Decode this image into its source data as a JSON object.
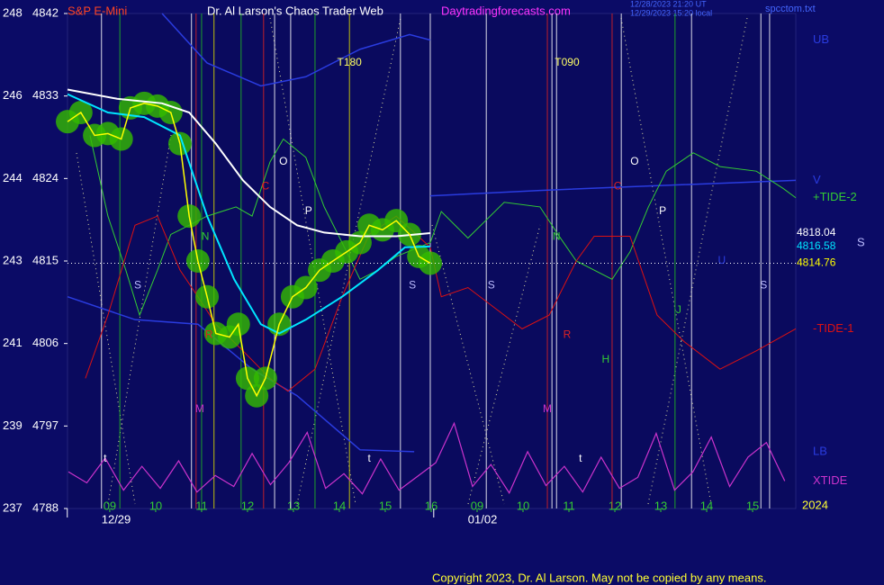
{
  "chart_data": {
    "type": "line",
    "symbol": "S&P E-Mini",
    "title": "Dr. Al Larson's Chaos Trader Web",
    "site": "Daytradingforecasts.com",
    "time_ut": "12/28/2023 21:20 UT",
    "time_local": "12/29/2023 15:20 local",
    "file": "spcctom.txt",
    "copyright": "Copyright 2023, Dr. Al Larson. May not be copied by any means.",
    "year_label": "2024",
    "side_label": "S",
    "xlim": [
      8.08,
      23.94
    ],
    "ylim": [
      4788,
      4842
    ],
    "yticks": [
      4842,
      4833,
      4824,
      4815,
      4806,
      4797,
      4788
    ],
    "y2lim": [
      237,
      248
    ],
    "y2ticks": [
      248,
      {
        "value": 246.17,
        "label": "246"
      },
      {
        "value": 244.33,
        "label": "244"
      },
      {
        "value": 242.5,
        "label": "243"
      },
      {
        "value": 240.67,
        "label": "241"
      },
      {
        "value": 238.83,
        "label": "239"
      },
      237
    ],
    "xticks": [
      {
        "value": 9,
        "label": "09"
      },
      10,
      11,
      12,
      13,
      14,
      15,
      16,
      {
        "value": 17,
        "label": "09"
      },
      {
        "value": 18,
        "label": "10"
      },
      {
        "value": 19,
        "label": "11"
      },
      {
        "value": 20,
        "label": "12"
      },
      {
        "value": 21,
        "label": "13"
      },
      {
        "value": 22,
        "label": "14"
      },
      {
        "value": 23,
        "label": "15"
      }
    ],
    "date_ticks": [
      {
        "value": 8.82,
        "label": "12/29"
      },
      {
        "value": 16.8,
        "label": "01/02"
      }
    ],
    "vertical_lines": [
      {
        "x": 8.82,
        "color": "#ffffff"
      },
      {
        "x": 9.22,
        "color": "#22bb22"
      },
      {
        "x": 10.78,
        "color": "#ffffff"
      },
      {
        "x": 10.88,
        "color": "#dd2222"
      },
      {
        "x": 11.0,
        "color": "#22bb22"
      },
      {
        "x": 11.27,
        "color": "#dddd00"
      },
      {
        "x": 11.86,
        "color": "#22bb22"
      },
      {
        "x": 12.35,
        "color": "#dd2222"
      },
      {
        "x": 12.59,
        "color": "#ffffff"
      },
      {
        "x": 12.94,
        "color": "#ffffff"
      },
      {
        "x": 13.47,
        "color": "#22bb22"
      },
      {
        "x": 14.22,
        "color": "#dddd00"
      },
      {
        "x": 15.33,
        "color": "#ffffff"
      },
      {
        "x": 15.98,
        "color": "#ffffff"
      },
      {
        "x": 17.2,
        "color": "#ffffff"
      },
      {
        "x": 18.53,
        "color": "#dd2222"
      },
      {
        "x": 18.63,
        "color": "#ffffff"
      },
      {
        "x": 18.73,
        "color": "#ffffff"
      },
      {
        "x": 19.94,
        "color": "#dd2222"
      },
      {
        "x": 20.14,
        "color": "#ffffff"
      },
      {
        "x": 21.31,
        "color": "#22bb22"
      },
      {
        "x": 21.67,
        "color": "#ffffff"
      },
      {
        "x": 23.18,
        "color": "#ffffff"
      },
      {
        "x": 23.37,
        "color": "#ffffff"
      }
    ],
    "series": [
      {
        "color": "#ffff00",
        "glow": "#33bb00",
        "x": [
          8.08,
          8.37,
          8.67,
          8.96,
          9.25,
          9.45,
          9.75,
          10.04,
          10.33,
          10.53,
          10.73,
          10.92,
          11.12,
          11.31,
          11.61,
          11.8,
          12.0,
          12.2,
          12.39,
          12.69,
          12.98,
          13.27,
          13.57,
          13.86,
          14.16,
          14.45,
          14.65,
          14.94,
          15.24,
          15.53,
          15.73,
          15.98
        ],
        "values": [
          4830.2,
          4831.2,
          4828.7,
          4828.9,
          4828.3,
          4831.7,
          4832.2,
          4831.9,
          4831.2,
          4827.8,
          4819.9,
          4815.0,
          4811.1,
          4807.1,
          4806.7,
          4808.1,
          4802.2,
          4800.3,
          4802.2,
          4808.1,
          4811.1,
          4812.1,
          4814.0,
          4815.0,
          4816.0,
          4817.0,
          4818.9,
          4818.4,
          4819.4,
          4817.9,
          4815.5,
          4814.76
        ]
      },
      {
        "color": "#00e5ff",
        "x": [
          8.08,
          8.96,
          9.75,
          10.53,
          11.12,
          11.71,
          12.29,
          12.69,
          13.27,
          14.06,
          14.84,
          15.43,
          15.98
        ],
        "values": [
          4833.2,
          4831.2,
          4830.7,
          4828.7,
          4819.9,
          4813.0,
          4808.1,
          4807.1,
          4808.6,
          4811.1,
          4814.0,
          4816.5,
          4816.58
        ]
      },
      {
        "color": "#ffffff",
        "x": [
          8.08,
          9.16,
          10.14,
          10.73,
          11.31,
          11.9,
          12.49,
          13.08,
          13.67,
          14.45,
          15.24,
          15.98
        ],
        "values": [
          4833.7,
          4832.7,
          4832.2,
          4831.2,
          4827.8,
          4823.8,
          4820.9,
          4818.9,
          4818.1,
          4817.7,
          4817.7,
          4818.04
        ]
      },
      {
        "name": "+TIDE-2",
        "color": "#33cc33",
        "x": [
          8.57,
          8.96,
          9.35,
          9.65,
          10.04,
          10.33,
          10.73,
          11.12,
          11.75,
          12.1,
          12.49,
          12.78,
          13.27,
          13.67,
          14.06,
          14.45,
          14.84,
          15.24,
          15.98,
          16.22,
          16.8,
          17.59,
          18.37,
          18.76,
          19.16,
          19.94,
          20.33,
          20.73,
          21.12,
          21.71,
          22.29,
          23.08,
          23.67,
          23.94
        ],
        "values": [
          4828.7,
          4819.9,
          4814.0,
          4809.1,
          4814.0,
          4817.9,
          4818.9,
          4819.9,
          4820.9,
          4819.9,
          4825.8,
          4828.3,
          4826.3,
          4820.9,
          4817.0,
          4813.0,
          4814.0,
          4815.5,
          4817.0,
          4820.4,
          4817.5,
          4821.4,
          4820.9,
          4817.9,
          4815.0,
          4813.0,
          4816.0,
          4820.9,
          4824.8,
          4826.8,
          4825.3,
          4824.8,
          4822.9,
          4821.9
        ]
      },
      {
        "name": "-TIDE-1",
        "color": "#dd1111",
        "x": [
          8.47,
          8.96,
          9.55,
          10.04,
          10.53,
          10.92,
          11.31,
          11.9,
          12.49,
          12.88,
          13.47,
          14.06,
          14.65,
          15.24,
          15.98,
          16.22,
          16.8,
          17.59,
          17.98,
          18.57,
          19.16,
          19.55,
          20.33,
          20.92,
          21.51,
          22.29,
          23.08,
          23.94
        ],
        "values": [
          4802.2,
          4809.1,
          4818.9,
          4819.9,
          4814.0,
          4811.1,
          4808.1,
          4805.2,
          4802.2,
          4800.8,
          4803.2,
          4811.1,
          4817.9,
          4819.9,
          4816.5,
          4811.1,
          4812.1,
          4809.1,
          4807.6,
          4809.1,
          4815.0,
          4817.7,
          4817.7,
          4809.1,
          4806.2,
          4803.2,
          4805.2,
          4807.6
        ]
      },
      {
        "name": "XTIDE",
        "color": "#cc33cc",
        "x": [
          8.1,
          8.5,
          8.9,
          9.3,
          9.7,
          10.1,
          10.5,
          10.9,
          11.3,
          11.7,
          12.1,
          12.5,
          12.9,
          13.3,
          13.7,
          14.1,
          14.5,
          14.9,
          15.3,
          15.7,
          16.1,
          16.5,
          16.9,
          17.3,
          17.7,
          18.1,
          18.5,
          18.9,
          19.3,
          19.7,
          20.1,
          20.5,
          20.9,
          21.3,
          21.7,
          22.1,
          22.5,
          22.9,
          23.3,
          23.7
        ],
        "values": [
          4792.0,
          4790.8,
          4793.5,
          4790.0,
          4792.6,
          4790.2,
          4793.2,
          4789.8,
          4791.6,
          4790.4,
          4794.0,
          4790.6,
          4793.0,
          4796.3,
          4790.2,
          4791.8,
          4789.6,
          4793.4,
          4790.0,
          4791.5,
          4793.0,
          4797.3,
          4790.4,
          4792.8,
          4789.7,
          4794.2,
          4790.5,
          4792.6,
          4789.8,
          4793.6,
          4790.2,
          4791.4,
          4796.2,
          4790.0,
          4792.0,
          4795.8,
          4790.4,
          4793.6,
          4795.2,
          4791.0
        ]
      },
      {
        "name": "UB",
        "color": "#2a3ce0",
        "x": [
          10.14,
          11.12,
          12.29,
          13.27,
          14.45,
          15.53,
          15.98
        ],
        "values": [
          4842.0,
          4836.6,
          4834.1,
          4835.1,
          4838.1,
          4839.7,
          4839.1
        ]
      },
      {
        "name": "V",
        "color": "#2a3ce0",
        "x": [
          15.98,
          18.37,
          20.33,
          23.94
        ],
        "values": [
          4822.1,
          4822.7,
          4823.1,
          4823.8
        ]
      },
      {
        "name": "LB",
        "color": "#2a3ce0",
        "x": [
          8.08,
          9.55,
          10.92,
          12.1,
          13.08,
          14.45,
          15.63
        ],
        "values": [
          4811.1,
          4808.6,
          4808.1,
          4803.2,
          4800.3,
          4794.4,
          4794.2
        ]
      }
    ],
    "annotations": [
      {
        "text": "T180",
        "x": 14.22,
        "y": 4836.6,
        "color": "#ffff66"
      },
      {
        "text": "T090",
        "x": 18.96,
        "y": 4836.6,
        "color": "#ffff66"
      },
      {
        "text": "O",
        "x": 12.78,
        "y": 4825.8,
        "color": "#ffffff"
      },
      {
        "text": "C",
        "x": 12.39,
        "y": 4823.1,
        "color": "#dd2222"
      },
      {
        "text": "P",
        "x": 13.33,
        "y": 4820.4,
        "color": "#ffffff"
      },
      {
        "text": "N",
        "x": 11.08,
        "y": 4817.6,
        "color": "#33cc33"
      },
      {
        "text": "S",
        "x": 9.61,
        "y": 4812.3,
        "color": "#bbbbff"
      },
      {
        "text": "R",
        "x": 11.16,
        "y": 4806.9,
        "color": "#dd2222"
      },
      {
        "text": "M",
        "x": 10.96,
        "y": 4798.8,
        "color": "#cc33cc"
      },
      {
        "text": "t",
        "x": 8.9,
        "y": 4793.4,
        "color": "#ffffff"
      },
      {
        "text": "t",
        "x": 14.65,
        "y": 4793.4,
        "color": "#ffffff"
      },
      {
        "text": "S",
        "x": 15.59,
        "y": 4812.3,
        "color": "#bbbbff"
      },
      {
        "text": "S",
        "x": 17.31,
        "y": 4812.3,
        "color": "#bbbbff"
      },
      {
        "text": "O",
        "x": 20.43,
        "y": 4825.8,
        "color": "#ffffff"
      },
      {
        "text": "C",
        "x": 20.06,
        "y": 4823.1,
        "color": "#dd2222"
      },
      {
        "text": "P",
        "x": 21.04,
        "y": 4820.4,
        "color": "#ffffff"
      },
      {
        "text": "N",
        "x": 18.73,
        "y": 4817.6,
        "color": "#33cc33"
      },
      {
        "text": "R",
        "x": 18.96,
        "y": 4806.9,
        "color": "#dd2222"
      },
      {
        "text": "H",
        "x": 19.8,
        "y": 4804.2,
        "color": "#33cc33"
      },
      {
        "text": "J",
        "x": 21.39,
        "y": 4809.6,
        "color": "#33cc33"
      },
      {
        "text": "U",
        "x": 22.33,
        "y": 4815.0,
        "color": "#2a3ce0"
      },
      {
        "text": "M",
        "x": 18.53,
        "y": 4798.8,
        "color": "#cc33cc"
      },
      {
        "text": "t",
        "x": 19.25,
        "y": 4793.4,
        "color": "#ffffff"
      },
      {
        "text": "S",
        "x": 23.24,
        "y": 4812.3,
        "color": "#bbbbff"
      }
    ]
  }
}
